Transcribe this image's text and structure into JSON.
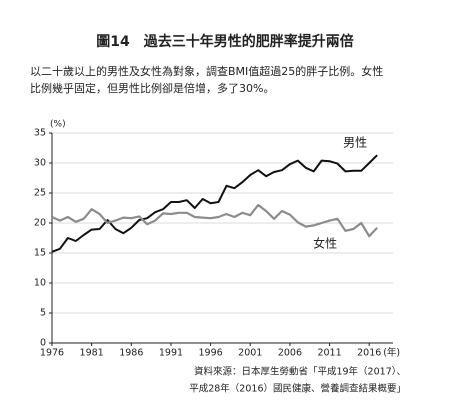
{
  "chart_data": {
    "type": "line",
    "title": "圖14　過去三十年男性的肥胖率提升兩倍",
    "subtitle": [
      "以二十歲以上的男性及女性為對象，調查BMI值超過25的胖子比例。女性",
      "比例幾乎固定，但男性比例卻是倍增，多了30%。"
    ],
    "y_unit": "(%)",
    "x_unit": "(年)",
    "x": [
      1976,
      1977,
      1978,
      1979,
      1980,
      1981,
      1982,
      1983,
      1984,
      1985,
      1986,
      1987,
      1988,
      1989,
      1990,
      1991,
      1992,
      1993,
      1994,
      1995,
      1996,
      1997,
      1998,
      1999,
      2000,
      2001,
      2002,
      2003,
      2004,
      2005,
      2006,
      2007,
      2008,
      2009,
      2010,
      2011,
      2012,
      2013,
      2014,
      2015,
      2016,
      2017
    ],
    "series": [
      {
        "name": "男性",
        "color": "#111111",
        "values": [
          15.2,
          15.7,
          17.5,
          17.0,
          18.0,
          18.9,
          19.0,
          20.5,
          19.0,
          18.3,
          19.2,
          20.5,
          20.8,
          21.8,
          22.3,
          23.5,
          23.5,
          23.8,
          22.5,
          24.0,
          23.3,
          23.5,
          26.2,
          25.8,
          26.8,
          28.0,
          28.8,
          27.8,
          28.5,
          28.8,
          29.8,
          30.4,
          29.2,
          28.6,
          30.4,
          30.3,
          29.9,
          28.6,
          28.7,
          28.7,
          30.0,
          31.3
        ]
      },
      {
        "name": "女性",
        "color": "#8c8c8c",
        "values": [
          21.0,
          20.4,
          21.0,
          20.2,
          20.7,
          22.3,
          21.5,
          20.0,
          20.4,
          20.9,
          20.8,
          21.1,
          19.8,
          20.4,
          21.6,
          21.5,
          21.7,
          21.7,
          21.0,
          20.9,
          20.8,
          21.0,
          21.5,
          21.0,
          21.7,
          21.3,
          23.0,
          22.0,
          20.7,
          22.0,
          21.4,
          20.1,
          19.4,
          19.6,
          20.0,
          20.4,
          20.7,
          18.7,
          19.0,
          20.0,
          17.8,
          19.2
        ]
      }
    ],
    "xlim": [
      1976,
      2019
    ],
    "xticks": [
      1976,
      1981,
      1986,
      1991,
      1996,
      2001,
      2006,
      2011,
      2016
    ],
    "ylim": [
      0,
      35
    ],
    "yticks": [
      0,
      5,
      10,
      15,
      20,
      25,
      30,
      35
    ],
    "grid": true,
    "source": [
      "資料來源：日本厚生勞動省「平成19年（2017）、",
      "平成28年（2016）國民健康、營養調查結果概要」"
    ]
  }
}
